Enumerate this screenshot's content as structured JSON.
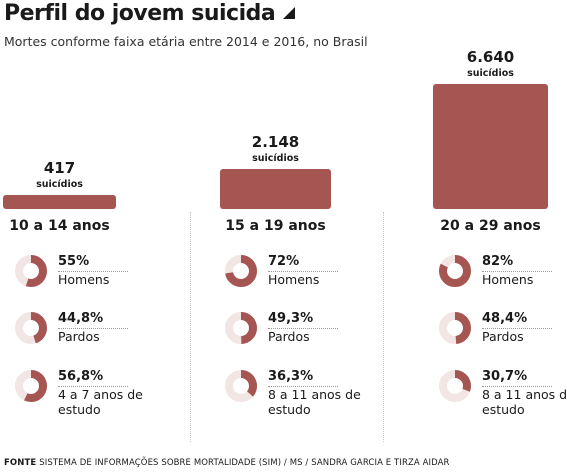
{
  "title": "Perfil do jovem suicida",
  "subtitle": "Mortes conforme faixa etária entre 2014 e 2016, no Brasil",
  "colors": {
    "bar": "#a55552",
    "donut_fill": "#a55552",
    "donut_track": "#f1e6e3"
  },
  "chart_data": {
    "type": "bar",
    "title": "Perfil do jovem suicida",
    "subtitle": "Mortes conforme faixa etária entre 2014 e 2016, no Brasil",
    "categories": [
      "10 a 14 anos",
      "15 a 19 anos",
      "20 a 29 anos"
    ],
    "values": [
      417,
      2148,
      6640
    ],
    "value_labels": [
      "417",
      "2.148",
      "6.640"
    ],
    "unit_label": "suicídios",
    "bar_max": 6640
  },
  "groups": [
    {
      "age": "10 a 14 anos",
      "count_label": "417",
      "unit": "suicídios",
      "stats": [
        {
          "pct": "55%",
          "value": 55,
          "label": "Homens"
        },
        {
          "pct": "44,8%",
          "value": 44.8,
          "label": "Pardos"
        },
        {
          "pct": "56,8%",
          "value": 56.8,
          "label": "4 a 7 anos de estudo"
        }
      ]
    },
    {
      "age": "15 a 19 anos",
      "count_label": "2.148",
      "unit": "suicídios",
      "stats": [
        {
          "pct": "72%",
          "value": 72,
          "label": "Homens"
        },
        {
          "pct": "49,3%",
          "value": 49.3,
          "label": "Pardos"
        },
        {
          "pct": "36,3%",
          "value": 36.3,
          "label": "8 a 11 anos de estudo"
        }
      ]
    },
    {
      "age": "20 a 29 anos",
      "count_label": "6.640",
      "unit": "suicídios",
      "stats": [
        {
          "pct": "82%",
          "value": 82,
          "label": "Homens"
        },
        {
          "pct": "48,4%",
          "value": 48.4,
          "label": "Pardos"
        },
        {
          "pct": "30,7%",
          "value": 30.7,
          "label": "8 a 11 anos de estudo"
        }
      ]
    }
  ],
  "footer": {
    "label": "FONTE",
    "text": "SISTEMA DE INFORMAÇÕES SOBRE MORTALIDADE (SIM) / MS / SANDRA GARCIA E TIRZA AIDAR"
  }
}
